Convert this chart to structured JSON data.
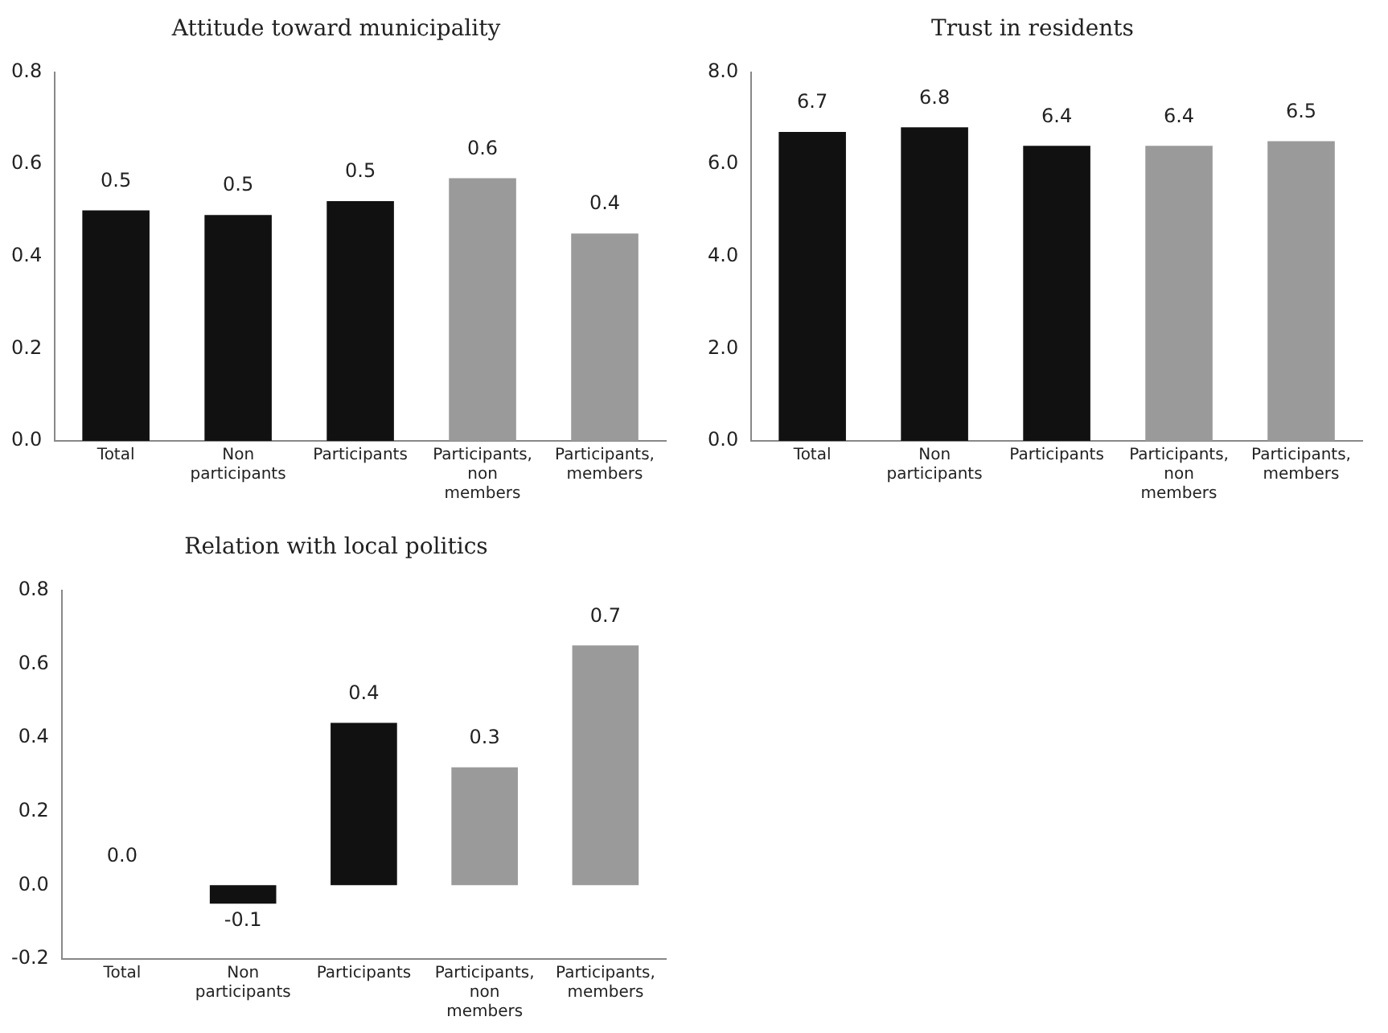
{
  "chart_data": [
    {
      "type": "bar",
      "title": "Attitude toward municipality",
      "categories": [
        "Total",
        "Non participants",
        "Participants",
        "Participants, non members",
        "Participants, members"
      ],
      "values": [
        0.5,
        0.49,
        0.52,
        0.57,
        0.45
      ],
      "value_labels": [
        "0.5",
        "0.5",
        "0.5",
        "0.6",
        "0.4"
      ],
      "colors": [
        "#111111",
        "#111111",
        "#111111",
        "#9a9a9a",
        "#9a9a9a"
      ],
      "ylim": [
        0,
        0.8
      ],
      "yticks": [
        {
          "value": 0,
          "label": "0.0"
        },
        {
          "value": 0.2,
          "label": "0.2"
        },
        {
          "value": 0.4,
          "label": "0.4"
        },
        {
          "value": 0.6,
          "label": "0.6"
        },
        {
          "value": 0.8,
          "label": "0.8"
        }
      ],
      "grid": false,
      "legend": false
    },
    {
      "type": "bar",
      "title": "Trust in residents",
      "categories": [
        "Total",
        "Non participants",
        "Participants",
        "Participants, non members",
        "Participants, members"
      ],
      "values": [
        6.7,
        6.8,
        6.4,
        6.4,
        6.5
      ],
      "data_labels": true,
      "colors": [
        "#111111",
        "#111111",
        "#111111",
        "#9a9a9a",
        "#9a9a9a"
      ],
      "ylim": [
        0,
        8
      ],
      "yticks": [
        {
          "value": 0,
          "label": "0.0"
        },
        {
          "value": 2,
          "label": "2.0"
        },
        {
          "value": 4,
          "label": "4.0"
        },
        {
          "value": 6,
          "label": "6.0"
        },
        {
          "value": 8,
          "label": "8.0"
        }
      ],
      "grid": false,
      "legend": false
    },
    {
      "type": "bar",
      "title": "Relation with local politics",
      "categories": [
        "Total",
        "Non participants",
        "Participants",
        "Participants, non members",
        "Participants, members"
      ],
      "values": [
        0.0,
        -0.05,
        0.44,
        0.32,
        0.65
      ],
      "value_labels": [
        "0.0",
        "-0.1",
        "0.4",
        "0.3",
        "0.7"
      ],
      "colors": [
        "#111111",
        "#111111",
        "#111111",
        "#9a9a9a",
        "#9a9a9a"
      ],
      "ylim": [
        -0.2,
        0.8
      ],
      "yticks": [
        {
          "value": -0.2,
          "label": "-0.2"
        },
        {
          "value": 0,
          "label": "0.0"
        },
        {
          "value": 0.2,
          "label": "0.2"
        },
        {
          "value": 0.4,
          "label": "0.4"
        },
        {
          "value": 0.6,
          "label": "0.6"
        },
        {
          "value": 0.8,
          "label": "0.8"
        }
      ],
      "grid": false,
      "legend": false
    }
  ]
}
